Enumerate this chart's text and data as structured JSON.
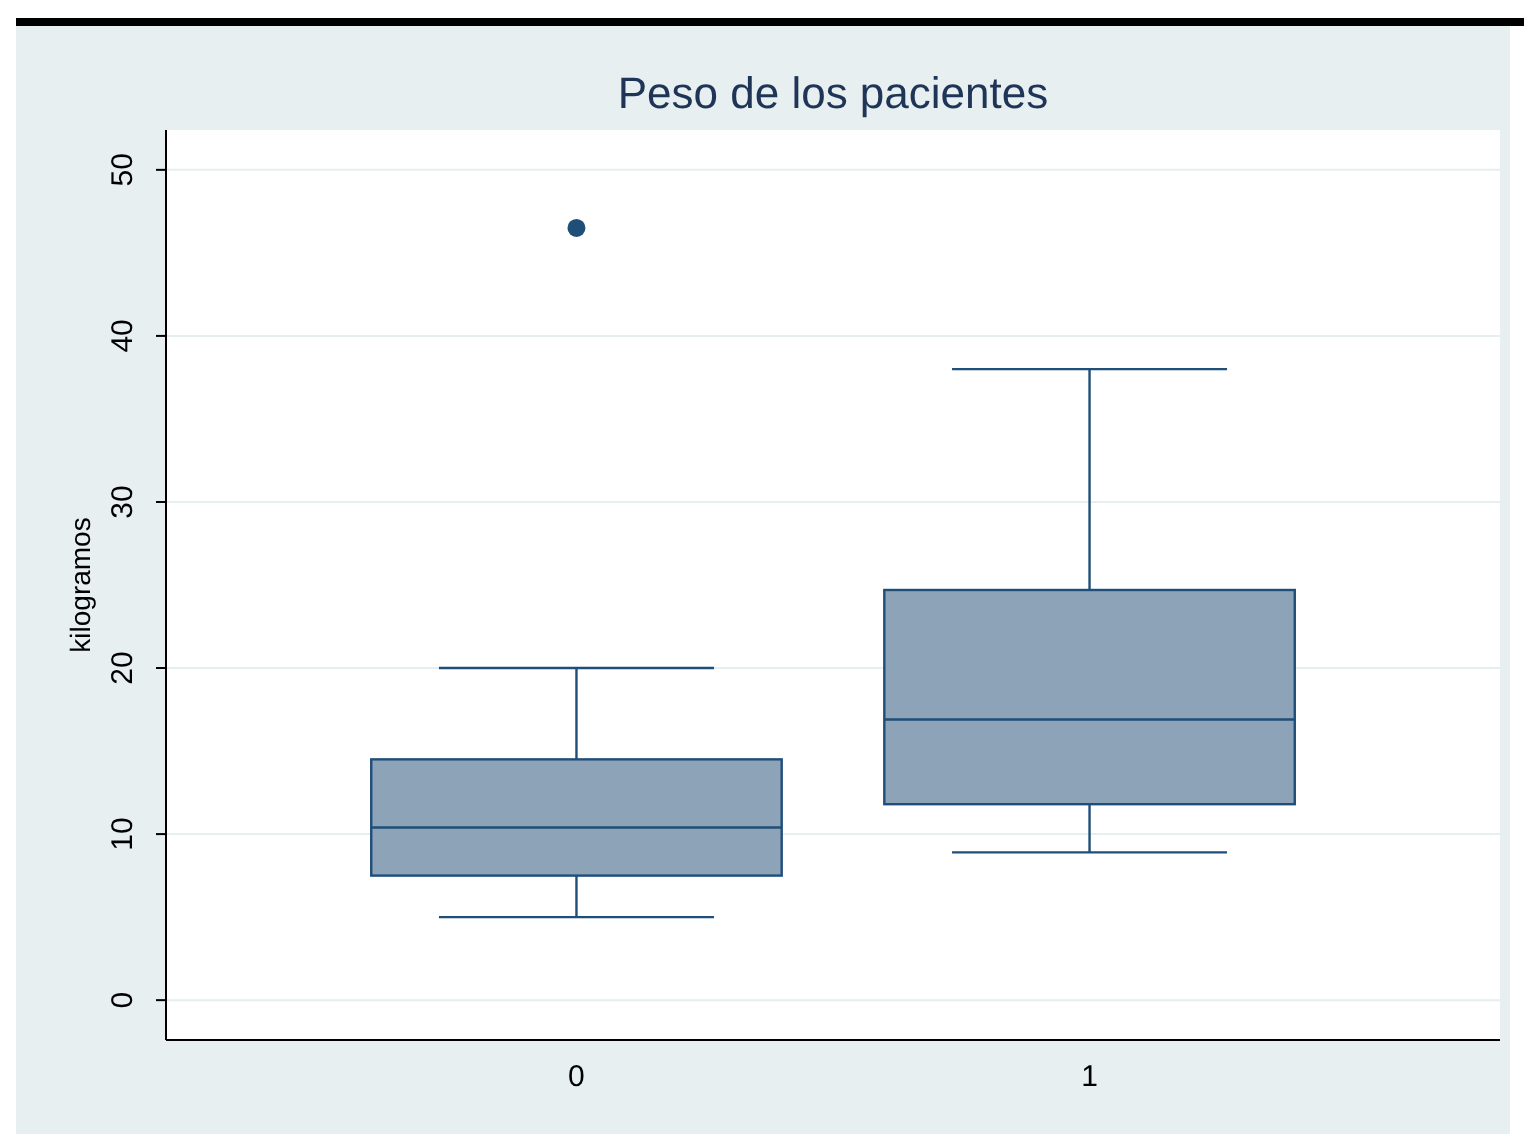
{
  "chart_data": {
    "type": "box",
    "title": "Peso de los pacientes",
    "ylabel": "kilogramos",
    "categories": [
      "0",
      "1"
    ],
    "boxes": [
      {
        "low": 5,
        "q1": 7.5,
        "median": 10.4,
        "q3": 14.5,
        "high": 20,
        "outliers": [
          46.5
        ]
      },
      {
        "low": 8.9,
        "q1": 11.8,
        "median": 16.9,
        "q3": 24.7,
        "high": 38
      }
    ],
    "color": "#8da3b8",
    "ylim": [
      -2.4,
      52.4
    ],
    "yticks": [
      0,
      10,
      20,
      30,
      40,
      50
    ],
    "grid": "y"
  }
}
